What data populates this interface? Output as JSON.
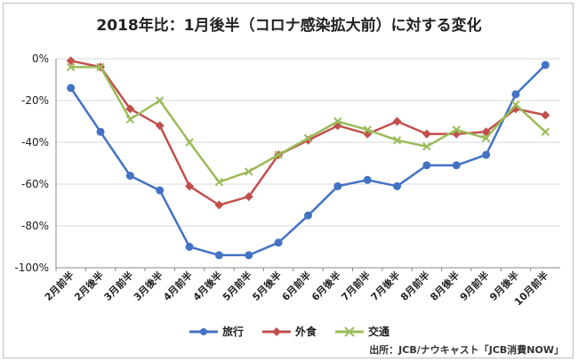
{
  "chart_data": {
    "type": "line",
    "title": "2018年比：1月後半（コロナ感染拡大前）に対する変化",
    "xlabel": "",
    "ylabel": "",
    "categories": [
      "2月前半",
      "2月後半",
      "3月前半",
      "3月後半",
      "4月前半",
      "4月後半",
      "5月前半",
      "5月後半",
      "6月前半",
      "6月後半",
      "7月前半",
      "7月後半",
      "8月前半",
      "8月後半",
      "9月前半",
      "9月後半",
      "10月前半"
    ],
    "ylim": [
      -100,
      0
    ],
    "yticks": [
      0,
      -20,
      -40,
      -60,
      -80,
      -100
    ],
    "ytick_labels": [
      "0%",
      "-20%",
      "-40%",
      "-60%",
      "-80%",
      "-100%"
    ],
    "grid": "horizontal",
    "legend": "bottom",
    "series": [
      {
        "name": "旅行",
        "color": "#4472c4",
        "marker": "circle",
        "values": [
          -14,
          -35,
          -56,
          -63,
          -90,
          -94,
          -94,
          -88,
          -75,
          -61,
          -58,
          -61,
          -51,
          -51,
          -46,
          -17,
          -3
        ]
      },
      {
        "name": "外食",
        "color": "#c0504d",
        "marker": "diamond",
        "values": [
          -1,
          -4,
          -24,
          -32,
          -61,
          -70,
          -66,
          -46,
          -39,
          -32,
          -36,
          -30,
          -36,
          -36,
          -35,
          -24,
          -27
        ]
      },
      {
        "name": "交通",
        "color": "#9bbb59",
        "marker": "x",
        "values": [
          -4,
          -4,
          -29,
          -20,
          -40,
          -59,
          -54,
          -46,
          -38,
          -30,
          -34,
          -39,
          -42,
          -34,
          -38,
          -22,
          -35
        ]
      }
    ],
    "source": "出所：JCB/ナウキャスト「JCB消費NOW」"
  }
}
